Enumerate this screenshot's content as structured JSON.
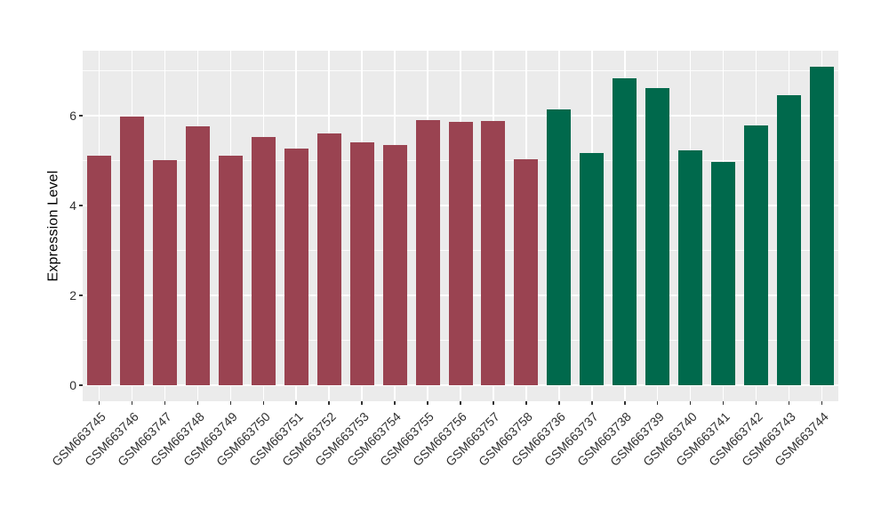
{
  "figure": {
    "background": "#FFFFFF",
    "panel_background": "#EBEBEB",
    "gridline_color": "#FFFFFF",
    "tick_color": "#333333",
    "axis_text_color": "#303030"
  },
  "chart_data": {
    "type": "bar",
    "title": "",
    "xlabel": "",
    "ylabel": "Expression Level",
    "categories": [
      "GSM663745",
      "GSM663746",
      "GSM663747",
      "GSM663748",
      "GSM663749",
      "GSM663750",
      "GSM663751",
      "GSM663752",
      "GSM663753",
      "GSM663754",
      "GSM663755",
      "GSM663756",
      "GSM663757",
      "GSM663758",
      "GSM663736",
      "GSM663737",
      "GSM663738",
      "GSM663739",
      "GSM663740",
      "GSM663741",
      "GSM663742",
      "GSM663743",
      "GSM663744"
    ],
    "values": [
      5.11,
      5.98,
      5.02,
      5.77,
      5.12,
      5.52,
      5.26,
      5.61,
      5.41,
      5.35,
      5.91,
      5.87,
      5.89,
      5.04,
      6.14,
      5.17,
      6.84,
      6.61,
      5.23,
      4.98,
      5.79,
      6.46,
      7.09
    ],
    "bar_groups": [
      "group1",
      "group1",
      "group1",
      "group1",
      "group1",
      "group1",
      "group1",
      "group1",
      "group1",
      "group1",
      "group1",
      "group1",
      "group1",
      "group1",
      "group2",
      "group2",
      "group2",
      "group2",
      "group2",
      "group2",
      "group2",
      "group2",
      "group2"
    ],
    "group_colors": {
      "group1": "#9A4351",
      "group2": "#00694C"
    },
    "yticks": [
      0,
      2,
      4,
      6
    ],
    "minor_yticks": [
      1,
      3,
      5,
      7
    ],
    "ylim": [
      -0.36,
      7.45
    ],
    "grid": true,
    "legend": false
  }
}
